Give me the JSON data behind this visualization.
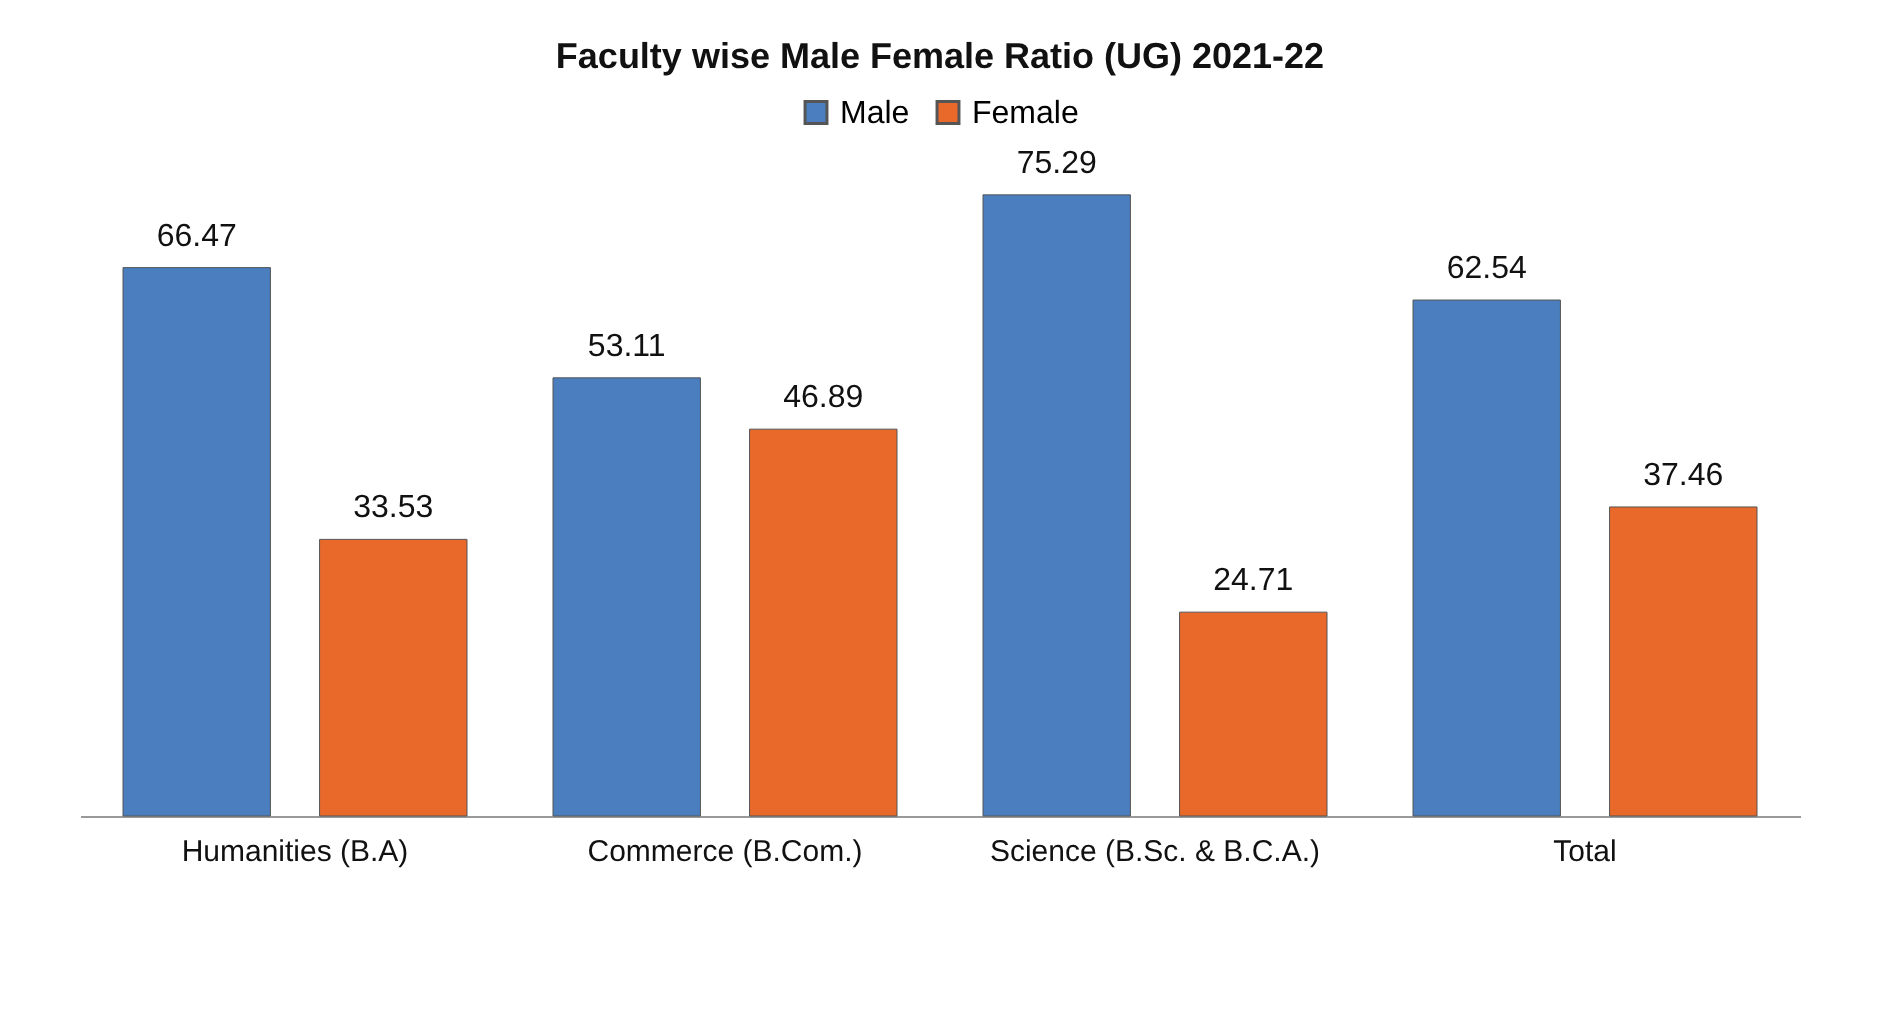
{
  "chart_data": {
    "type": "bar",
    "title": "Faculty wise Male Female Ratio (UG) 2021-22",
    "categories": [
      "Humanities (B.A)",
      "Commerce (B.Com.)",
      "Science (B.Sc. & B.C.A.)",
      "Total"
    ],
    "series": [
      {
        "name": "Male",
        "color": "#4a7ebf",
        "values": [
          66.47,
          53.11,
          75.29,
          62.54
        ]
      },
      {
        "name": "Female",
        "color": "#e8692a",
        "values": [
          33.53,
          46.89,
          24.71,
          37.46
        ]
      }
    ],
    "data_labels": true,
    "legend": "top"
  }
}
